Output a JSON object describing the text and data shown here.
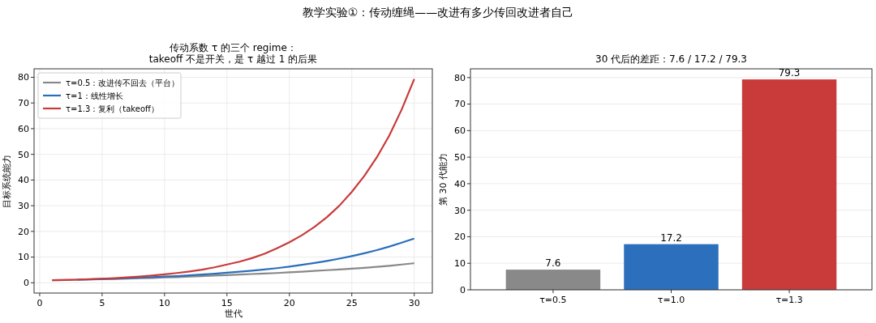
{
  "chart_data": [
    {
      "type": "line",
      "title": "传动系数 τ 的三个 regime：\ntakeoff 不是开关，是 τ 越过 1 的后果",
      "xlabel": "世代",
      "ylabel": "目标系统能力",
      "annotations": [
        "教学实验①：传动缠绳——改进有多少传回改进者自己"
      ],
      "x": [
        1,
        2,
        3,
        4,
        5,
        6,
        7,
        8,
        9,
        10,
        11,
        12,
        13,
        14,
        15,
        16,
        17,
        18,
        19,
        20,
        21,
        22,
        23,
        24,
        25,
        26,
        27,
        28,
        29,
        30
      ],
      "series": [
        {
          "name": "τ=0.5：改进传不回去（平台）",
          "color": "#888888",
          "values": [
            1.0,
            1.1,
            1.2,
            1.3,
            1.4,
            1.5,
            1.6,
            1.8,
            1.9,
            2.1,
            2.2,
            2.4,
            2.6,
            2.8,
            3.0,
            3.2,
            3.4,
            3.6,
            3.8,
            4.1,
            4.3,
            4.6,
            4.9,
            5.2,
            5.5,
            5.8,
            6.2,
            6.6,
            7.1,
            7.6
          ]
        },
        {
          "name": "τ=1：线性增长",
          "color": "#2a6ebb",
          "values": [
            null,
            null,
            1.2,
            1.3,
            1.5,
            1.6,
            1.8,
            2.0,
            2.2,
            2.4,
            2.6,
            2.9,
            3.2,
            3.5,
            3.9,
            4.3,
            4.7,
            5.2,
            5.7,
            6.3,
            7.0,
            7.7,
            8.5,
            9.4,
            10.4,
            11.5,
            12.7,
            14.1,
            15.6,
            17.2
          ]
        },
        {
          "name": "τ=1.3：复利（takeoff）",
          "color": "#c93a3a",
          "values": [
            1.0,
            1.1,
            1.2,
            1.4,
            1.6,
            1.8,
            2.1,
            2.4,
            2.8,
            3.3,
            3.8,
            4.4,
            5.1,
            6.0,
            7.1,
            8.2,
            9.6,
            11.3,
            13.4,
            15.8,
            18.5,
            21.7,
            25.5,
            30.0,
            35.4,
            41.6,
            48.8,
            57.3,
            67.5,
            79.3
          ]
        }
      ],
      "xlim": [
        -0.45,
        31.45
      ],
      "xticks": [
        0,
        5,
        10,
        15,
        20,
        25,
        30
      ],
      "ylim": [
        -4,
        83.3
      ],
      "yticks": [
        0,
        10,
        20,
        30,
        40,
        50,
        60,
        70,
        80
      ],
      "grid": true,
      "legend": "top left"
    },
    {
      "type": "bar",
      "title": "30 代后的差距：7.6 / 17.2 / 79.3",
      "ylabel": "第 30 代能力",
      "categories": [
        "τ=0.5",
        "τ=1.0",
        "τ=1.3"
      ],
      "values": [
        7.6,
        17.2,
        79.3
      ],
      "colors": [
        "#898989",
        "#2c6fbc",
        "#c83b3a"
      ],
      "ylim": [
        0,
        83.3
      ],
      "yticks": [
        0,
        10,
        20,
        30,
        40,
        50,
        60,
        70,
        80
      ],
      "grid": "y",
      "data_labels": true
    }
  ]
}
